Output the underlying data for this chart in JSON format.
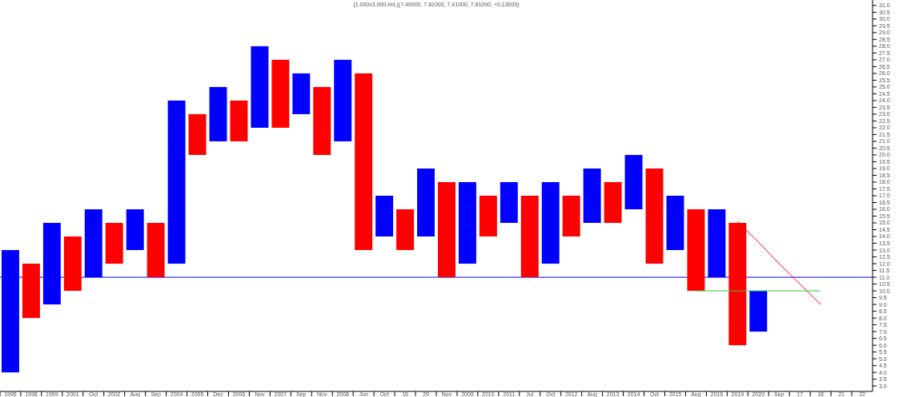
{
  "chart_data": {
    "type": "bar",
    "title": "(1.000x3.000-H/L)(7.49000, 7.81000, 7.41000, 7.81000, +0.13000)",
    "categories": [
      "1995",
      "1998",
      "1999",
      "2001",
      "Oct",
      "2002",
      "Aug",
      "Sep",
      "2004",
      "2005",
      "Dec",
      "2006",
      "Nov",
      "2007",
      "Sep",
      "Nov",
      "2008",
      "Jun",
      "Oct",
      "16",
      "29",
      "Nov",
      "2009",
      "2010",
      "2011",
      "Jul",
      "Oct",
      "2012",
      "Aug",
      "2013",
      "2014",
      "Oct",
      "2015",
      "Aug",
      "2016",
      "2019",
      "2020",
      "Sep",
      "17",
      "18",
      "21",
      "22"
    ],
    "series": [
      {
        "color": "#0000ff",
        "base": [
          4,
          null,
          9,
          null,
          11,
          null,
          13,
          null,
          12,
          null,
          21,
          null,
          22,
          null,
          23,
          null,
          21,
          null,
          14,
          null,
          14,
          null,
          12,
          null,
          15,
          null,
          12,
          null,
          15,
          null,
          16,
          null,
          13,
          null,
          11,
          null,
          7,
          null,
          null,
          null,
          null,
          null
        ],
        "values": [
          9,
          null,
          6,
          null,
          5,
          null,
          3,
          null,
          12,
          null,
          4,
          null,
          6,
          null,
          3,
          null,
          6,
          null,
          3,
          null,
          5,
          null,
          6,
          null,
          3,
          null,
          6,
          null,
          4,
          null,
          4,
          null,
          4,
          null,
          5,
          null,
          3,
          null,
          null,
          null,
          null,
          null
        ]
      },
      {
        "color": "#ff0000",
        "base": [
          null,
          8,
          null,
          10,
          null,
          12,
          null,
          11,
          null,
          20,
          null,
          21,
          null,
          22,
          null,
          20,
          null,
          13,
          null,
          13,
          null,
          11,
          null,
          14,
          null,
          11,
          null,
          14,
          null,
          15,
          null,
          12,
          null,
          10,
          null,
          6,
          null,
          null,
          null,
          null,
          null,
          null
        ],
        "values": [
          null,
          4,
          null,
          4,
          null,
          3,
          null,
          4,
          null,
          3,
          null,
          3,
          null,
          5,
          null,
          5,
          null,
          13,
          null,
          3,
          null,
          7,
          null,
          3,
          null,
          6,
          null,
          3,
          null,
          3,
          null,
          7,
          null,
          6,
          null,
          9,
          null,
          null,
          null,
          null,
          null,
          null
        ]
      },
      {
        "type": "line",
        "color": "#ff0000",
        "values": [
          null,
          null,
          null,
          null,
          null,
          null,
          null,
          null,
          null,
          null,
          null,
          null,
          null,
          null,
          null,
          null,
          null,
          null,
          null,
          null,
          null,
          null,
          null,
          null,
          null,
          null,
          null,
          null,
          null,
          null,
          null,
          null,
          null,
          null,
          null,
          15.1,
          13.6,
          12.0,
          10.5,
          9.0,
          null,
          null
        ]
      },
      {
        "type": "line",
        "color": "#33cc33",
        "values": [
          null,
          null,
          null,
          null,
          null,
          null,
          null,
          null,
          null,
          null,
          null,
          null,
          null,
          null,
          null,
          null,
          null,
          null,
          null,
          null,
          null,
          null,
          null,
          null,
          null,
          null,
          null,
          null,
          null,
          null,
          null,
          null,
          null,
          10,
          10,
          10,
          10,
          10,
          10,
          10,
          null,
          null
        ]
      }
    ],
    "ref_lines": [
      {
        "axis": "y",
        "value": 11,
        "color": "#0000ff"
      }
    ],
    "ylim": [
      2.6,
      31.4
    ],
    "yticks": [
      {
        "value": 3,
        "label": "3.0"
      },
      {
        "value": 3.5,
        "label": "3.5"
      },
      {
        "value": 4,
        "label": "4.0"
      },
      {
        "value": 4.5,
        "label": "4.5"
      },
      {
        "value": 5,
        "label": "5.0"
      },
      {
        "value": 5.5,
        "label": "5.5"
      },
      {
        "value": 6,
        "label": "6.0"
      },
      {
        "value": 6.5,
        "label": "6.5"
      },
      {
        "value": 7,
        "label": "7.0"
      },
      {
        "value": 7.5,
        "label": "7.5"
      },
      {
        "value": 8,
        "label": "8.0"
      },
      {
        "value": 8.5,
        "label": "8.5"
      },
      {
        "value": 9,
        "label": "9.0"
      },
      {
        "value": 9.5,
        "label": "9.5"
      },
      {
        "value": 10,
        "label": "10.0"
      },
      {
        "value": 10.5,
        "label": "10.5"
      },
      {
        "value": 11,
        "label": "11.0"
      },
      {
        "value": 11.5,
        "label": "11.5"
      },
      {
        "value": 12,
        "label": "12.0"
      },
      {
        "value": 12.5,
        "label": "12.5"
      },
      {
        "value": 13,
        "label": "13.0"
      },
      {
        "value": 13.5,
        "label": "13.5"
      },
      {
        "value": 14,
        "label": "14.0"
      },
      {
        "value": 14.5,
        "label": "14.5"
      },
      {
        "value": 15,
        "label": "15.0"
      },
      {
        "value": 15.5,
        "label": "15.5"
      },
      {
        "value": 16,
        "label": "16.0"
      },
      {
        "value": 16.5,
        "label": "16.5"
      },
      {
        "value": 17,
        "label": "17.0"
      },
      {
        "value": 17.5,
        "label": "17.5"
      },
      {
        "value": 18,
        "label": "18.0"
      },
      {
        "value": 18.5,
        "label": "18.5"
      },
      {
        "value": 19,
        "label": "19.0"
      },
      {
        "value": 19.5,
        "label": "19.5"
      },
      {
        "value": 20,
        "label": "20.0"
      },
      {
        "value": 20.5,
        "label": "20.5"
      },
      {
        "value": 21,
        "label": "21.0"
      },
      {
        "value": 21.5,
        "label": "21.5"
      },
      {
        "value": 22,
        "label": "22.0"
      },
      {
        "value": 22.5,
        "label": "22.5"
      },
      {
        "value": 23,
        "label": "23.0"
      },
      {
        "value": 23.5,
        "label": "23.5"
      },
      {
        "value": 24,
        "label": "24.0"
      },
      {
        "value": 24.5,
        "label": "24.5"
      },
      {
        "value": 25,
        "label": "25.0"
      },
      {
        "value": 25.5,
        "label": "25.5"
      },
      {
        "value": 26,
        "label": "26.0"
      },
      {
        "value": 26.5,
        "label": "26.5"
      },
      {
        "value": 27,
        "label": "27.0"
      },
      {
        "value": 27.5,
        "label": "27.5"
      },
      {
        "value": 28,
        "label": "28.0"
      },
      {
        "value": 28.5,
        "label": "28.5"
      },
      {
        "value": 29,
        "label": "29.0"
      },
      {
        "value": 29.5,
        "label": "29.5"
      },
      {
        "value": 30,
        "label": "30.0"
      },
      {
        "value": 30.5,
        "label": "30.5"
      },
      {
        "value": 31,
        "label": "31.0"
      }
    ]
  }
}
